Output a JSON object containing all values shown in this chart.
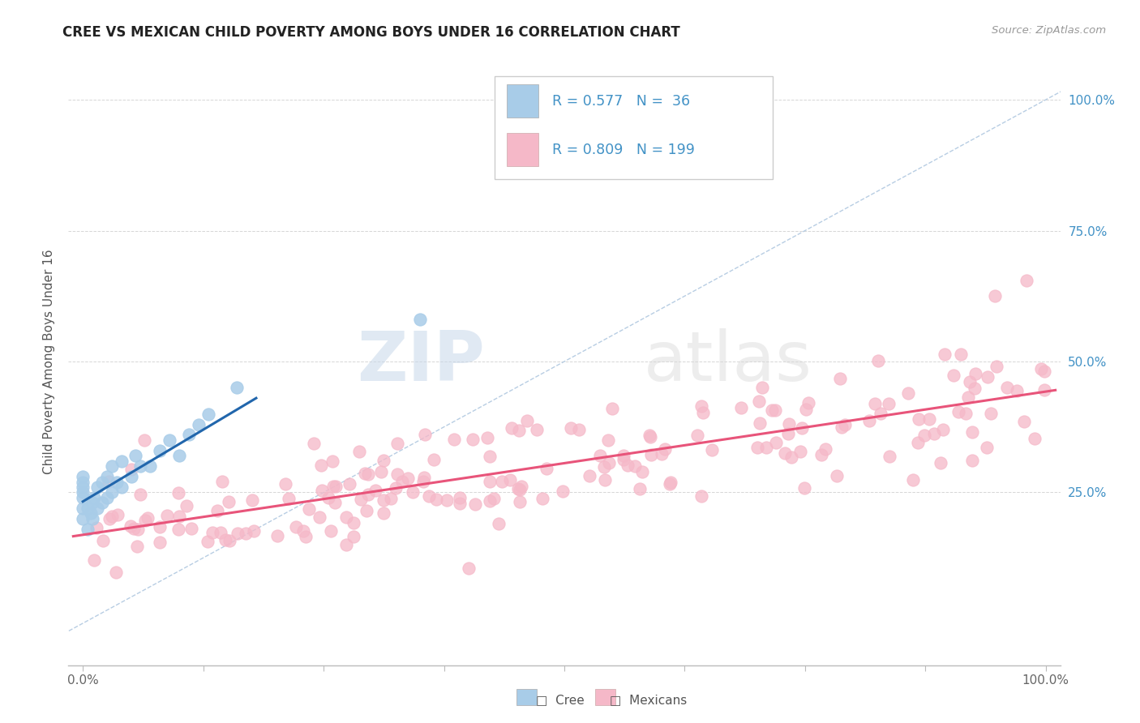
{
  "title": "CREE VS MEXICAN CHILD POVERTY AMONG BOYS UNDER 16 CORRELATION CHART",
  "source": "Source: ZipAtlas.com",
  "ylabel": "Child Poverty Among Boys Under 16",
  "cree_color": "#a8cce8",
  "mexican_color": "#f5b8c8",
  "cree_line_color": "#2166ac",
  "mexican_line_color": "#e8547a",
  "diagonal_color": "#b0c8e0",
  "r_n_color": "#4292c6",
  "background_color": "#ffffff",
  "watermark_zip": "ZIP",
  "watermark_atlas": "atlas"
}
